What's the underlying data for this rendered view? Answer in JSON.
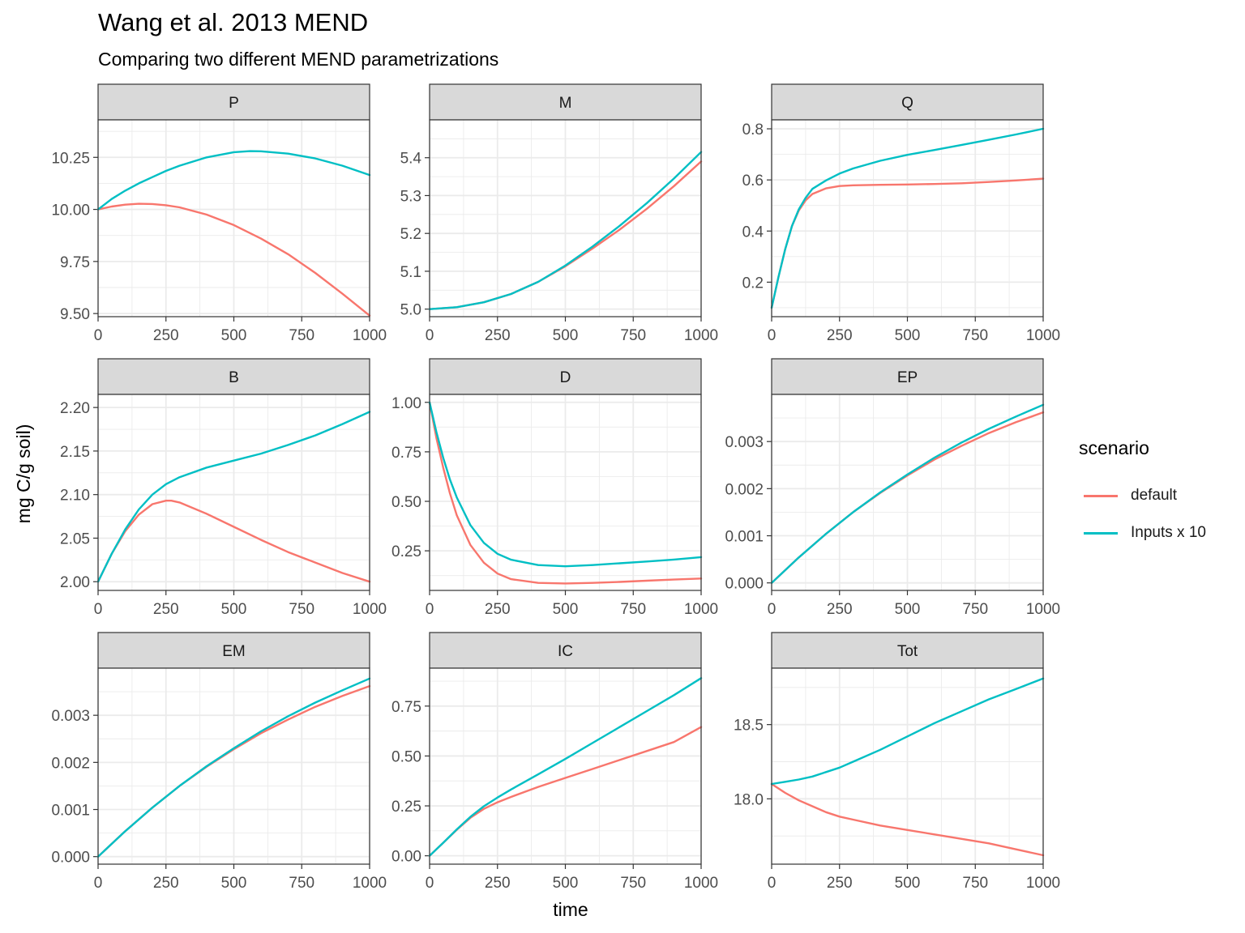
{
  "title": "Wang et al. 2013 MEND",
  "subtitle": "Comparing two different MEND parametrizations",
  "colors": {
    "default": "#F8766D",
    "inputs_x10": "#00BFC4",
    "strip_fill": "#D9D9D9",
    "grid": "#EBEBEB",
    "panel_border": "#333333"
  },
  "legend": {
    "title": "scenario",
    "items": [
      {
        "label": "default",
        "color": "#F8766D"
      },
      {
        "label": "Inputs x 10",
        "color": "#00BFC4"
      }
    ]
  },
  "chart_data": {
    "type": "line",
    "layout": "facet-wrap-3x3",
    "xlabel": "time",
    "ylabel": "mg C/g soil)",
    "legend_position": "right",
    "grid": true,
    "series_names": [
      "default",
      "Inputs x 10"
    ],
    "panels": [
      {
        "name": "P",
        "xlim": [
          0,
          1000
        ],
        "ylim": [
          9.485,
          10.43
        ],
        "xticks": [
          0,
          250,
          500,
          750,
          1000
        ],
        "xtick_labels": [
          "0",
          "250",
          "500",
          "750",
          "1000"
        ],
        "yticks": [
          9.5,
          9.75,
          10.0,
          10.25
        ],
        "ytick_labels": [
          "9.50",
          "9.75",
          "10.00",
          "10.25"
        ],
        "series": [
          {
            "name": "default",
            "x": [
              0,
              50,
              100,
              150,
              200,
              250,
              300,
              400,
              500,
              600,
              700,
              800,
              900,
              1000
            ],
            "y": [
              10.0,
              10.014,
              10.023,
              10.027,
              10.026,
              10.02,
              10.01,
              9.975,
              9.925,
              9.86,
              9.785,
              9.695,
              9.595,
              9.49
            ]
          },
          {
            "name": "Inputs x 10",
            "x": [
              0,
              50,
              100,
              150,
              200,
              250,
              300,
              400,
              500,
              560,
              600,
              700,
              800,
              900,
              1000
            ],
            "y": [
              10.0,
              10.05,
              10.09,
              10.125,
              10.155,
              10.185,
              10.21,
              10.25,
              10.275,
              10.28,
              10.279,
              10.268,
              10.245,
              10.21,
              10.165
            ]
          }
        ]
      },
      {
        "name": "M",
        "xlim": [
          0,
          1000
        ],
        "ylim": [
          4.98,
          5.5
        ],
        "xticks": [
          0,
          250,
          500,
          750,
          1000
        ],
        "xtick_labels": [
          "0",
          "250",
          "500",
          "750",
          "1000"
        ],
        "yticks": [
          5.0,
          5.1,
          5.2,
          5.3,
          5.4
        ],
        "ytick_labels": [
          "5.0",
          "5.1",
          "5.2",
          "5.3",
          "5.4"
        ],
        "series": [
          {
            "name": "default",
            "x": [
              0,
              100,
              200,
              300,
              400,
              500,
              600,
              700,
              800,
              900,
              1000
            ],
            "y": [
              5.0,
              5.005,
              5.018,
              5.04,
              5.072,
              5.113,
              5.16,
              5.21,
              5.265,
              5.325,
              5.39
            ]
          },
          {
            "name": "Inputs x 10",
            "x": [
              0,
              100,
              200,
              300,
              400,
              500,
              600,
              700,
              800,
              900,
              1000
            ],
            "y": [
              5.0,
              5.005,
              5.018,
              5.04,
              5.072,
              5.115,
              5.165,
              5.22,
              5.28,
              5.345,
              5.415
            ]
          }
        ]
      },
      {
        "name": "Q",
        "xlim": [
          0,
          1000
        ],
        "ylim": [
          0.065,
          0.835
        ],
        "xticks": [
          0,
          250,
          500,
          750,
          1000
        ],
        "xtick_labels": [
          "0",
          "250",
          "500",
          "750",
          "1000"
        ],
        "yticks": [
          0.2,
          0.4,
          0.6,
          0.8
        ],
        "ytick_labels": [
          "0.2",
          "0.4",
          "0.6",
          "0.8"
        ],
        "series": [
          {
            "name": "default",
            "x": [
              0,
              25,
              50,
              75,
              100,
              125,
              150,
              200,
              250,
              300,
              400,
              500,
              600,
              700,
              800,
              900,
              1000
            ],
            "y": [
              0.1,
              0.22,
              0.33,
              0.42,
              0.48,
              0.52,
              0.545,
              0.567,
              0.576,
              0.579,
              0.581,
              0.582,
              0.584,
              0.587,
              0.592,
              0.598,
              0.605
            ]
          },
          {
            "name": "Inputs x 10",
            "x": [
              0,
              25,
              50,
              75,
              100,
              125,
              150,
              200,
              250,
              300,
              400,
              500,
              600,
              700,
              800,
              900,
              1000
            ],
            "y": [
              0.1,
              0.22,
              0.33,
              0.42,
              0.485,
              0.53,
              0.565,
              0.598,
              0.625,
              0.645,
              0.675,
              0.698,
              0.717,
              0.737,
              0.757,
              0.778,
              0.8
            ]
          }
        ]
      },
      {
        "name": "B",
        "xlim": [
          0,
          1000
        ],
        "ylim": [
          1.99,
          2.215
        ],
        "xticks": [
          0,
          250,
          500,
          750,
          1000
        ],
        "xtick_labels": [
          "0",
          "250",
          "500",
          "750",
          "1000"
        ],
        "yticks": [
          2.0,
          2.05,
          2.1,
          2.15,
          2.2
        ],
        "ytick_labels": [
          "2.00",
          "2.05",
          "2.10",
          "2.15",
          "2.20"
        ],
        "series": [
          {
            "name": "default",
            "x": [
              0,
              50,
              100,
              150,
              200,
              250,
              270,
              300,
              400,
              500,
              600,
              700,
              800,
              900,
              1000
            ],
            "y": [
              2.0,
              2.032,
              2.058,
              2.077,
              2.089,
              2.093,
              2.093,
              2.091,
              2.078,
              2.063,
              2.048,
              2.034,
              2.022,
              2.01,
              2.0
            ]
          },
          {
            "name": "Inputs x 10",
            "x": [
              0,
              50,
              100,
              150,
              200,
              250,
              300,
              400,
              500,
              600,
              700,
              800,
              900,
              1000
            ],
            "y": [
              2.0,
              2.032,
              2.06,
              2.083,
              2.1,
              2.112,
              2.12,
              2.131,
              2.139,
              2.147,
              2.157,
              2.168,
              2.181,
              2.195
            ]
          }
        ]
      },
      {
        "name": "D",
        "xlim": [
          0,
          1000
        ],
        "ylim": [
          0.05,
          1.04
        ],
        "xticks": [
          0,
          250,
          500,
          750,
          1000
        ],
        "xtick_labels": [
          "0",
          "250",
          "500",
          "750",
          "1000"
        ],
        "yticks": [
          0.25,
          0.5,
          0.75,
          1.0
        ],
        "ytick_labels": [
          "0.25",
          "0.50",
          "0.75",
          "1.00"
        ],
        "series": [
          {
            "name": "default",
            "x": [
              0,
              25,
              50,
              75,
              100,
              150,
              200,
              250,
              300,
              400,
              500,
              600,
              700,
              800,
              900,
              1000
            ],
            "y": [
              1.0,
              0.82,
              0.67,
              0.54,
              0.43,
              0.28,
              0.19,
              0.135,
              0.107,
              0.088,
              0.085,
              0.088,
              0.093,
              0.099,
              0.105,
              0.11
            ]
          },
          {
            "name": "Inputs x 10",
            "x": [
              0,
              25,
              50,
              75,
              100,
              150,
              200,
              250,
              300,
              400,
              500,
              600,
              700,
              800,
              900,
              1000
            ],
            "y": [
              1.0,
              0.85,
              0.72,
              0.61,
              0.52,
              0.38,
              0.29,
              0.235,
              0.205,
              0.178,
              0.172,
              0.178,
              0.187,
              0.196,
              0.206,
              0.218
            ]
          }
        ]
      },
      {
        "name": "EP",
        "xlim": [
          0,
          1000
        ],
        "ylim": [
          -0.00016,
          0.004
        ],
        "xticks": [
          0,
          250,
          500,
          750,
          1000
        ],
        "xtick_labels": [
          "0",
          "250",
          "500",
          "750",
          "1000"
        ],
        "yticks": [
          0.0,
          0.001,
          0.002,
          0.003
        ],
        "ytick_labels": [
          "0.000",
          "0.001",
          "0.002",
          "0.003"
        ],
        "series": [
          {
            "name": "default",
            "x": [
              0,
              100,
              200,
              300,
              400,
              500,
              600,
              700,
              800,
              900,
              1000
            ],
            "y": [
              0.0,
              0.00054,
              0.00104,
              0.0015,
              0.00191,
              0.00228,
              0.00262,
              0.00291,
              0.00318,
              0.00341,
              0.00362
            ]
          },
          {
            "name": "Inputs x 10",
            "x": [
              0,
              100,
              200,
              300,
              400,
              500,
              600,
              700,
              800,
              900,
              1000
            ],
            "y": [
              0.0,
              0.00054,
              0.00104,
              0.0015,
              0.00192,
              0.0023,
              0.00266,
              0.00298,
              0.00327,
              0.00353,
              0.00378
            ]
          }
        ]
      },
      {
        "name": "EM",
        "xlim": [
          0,
          1000
        ],
        "ylim": [
          -0.00016,
          0.004
        ],
        "xticks": [
          0,
          250,
          500,
          750,
          1000
        ],
        "xtick_labels": [
          "0",
          "250",
          "500",
          "750",
          "1000"
        ],
        "yticks": [
          0.0,
          0.001,
          0.002,
          0.003
        ],
        "ytick_labels": [
          "0.000",
          "0.001",
          "0.002",
          "0.003"
        ],
        "series": [
          {
            "name": "default",
            "x": [
              0,
              100,
              200,
              300,
              400,
              500,
              600,
              700,
              800,
              900,
              1000
            ],
            "y": [
              0.0,
              0.00054,
              0.00104,
              0.0015,
              0.00191,
              0.00228,
              0.00262,
              0.00291,
              0.00318,
              0.00341,
              0.00362
            ]
          },
          {
            "name": "Inputs x 10",
            "x": [
              0,
              100,
              200,
              300,
              400,
              500,
              600,
              700,
              800,
              900,
              1000
            ],
            "y": [
              0.0,
              0.00054,
              0.00104,
              0.0015,
              0.00192,
              0.0023,
              0.00266,
              0.00298,
              0.00327,
              0.00353,
              0.00378
            ]
          }
        ]
      },
      {
        "name": "IC",
        "xlim": [
          0,
          1000
        ],
        "ylim": [
          -0.042,
          0.94
        ],
        "xticks": [
          0,
          250,
          500,
          750,
          1000
        ],
        "xtick_labels": [
          "0",
          "250",
          "500",
          "750",
          "1000"
        ],
        "yticks": [
          0.0,
          0.25,
          0.5,
          0.75
        ],
        "ytick_labels": [
          "0.00",
          "0.25",
          "0.50",
          "0.75"
        ],
        "series": [
          {
            "name": "default",
            "x": [
              0,
              50,
              100,
              150,
              200,
              250,
              300,
              400,
              500,
              600,
              700,
              800,
              900,
              1000
            ],
            "y": [
              0.0,
              0.065,
              0.13,
              0.19,
              0.235,
              0.268,
              0.295,
              0.345,
              0.39,
              0.435,
              0.48,
              0.525,
              0.57,
              0.645
            ]
          },
          {
            "name": "Inputs x 10",
            "x": [
              0,
              50,
              100,
              150,
              200,
              250,
              300,
              400,
              500,
              600,
              700,
              800,
              900,
              1000
            ],
            "y": [
              0.0,
              0.065,
              0.132,
              0.195,
              0.248,
              0.292,
              0.332,
              0.408,
              0.485,
              0.565,
              0.645,
              0.725,
              0.805,
              0.89
            ]
          }
        ]
      },
      {
        "name": "Tot",
        "xlim": [
          0,
          1000
        ],
        "ylim": [
          17.56,
          18.88
        ],
        "xticks": [
          0,
          250,
          500,
          750,
          1000
        ],
        "xtick_labels": [
          "0",
          "250",
          "500",
          "750",
          "1000"
        ],
        "yticks": [
          18.0,
          18.5
        ],
        "ytick_labels": [
          "18.0",
          "18.5"
        ],
        "series": [
          {
            "name": "default",
            "x": [
              0,
              50,
              100,
              150,
              200,
              250,
              300,
              400,
              500,
              600,
              700,
              800,
              900,
              1000
            ],
            "y": [
              18.1,
              18.04,
              17.99,
              17.95,
              17.91,
              17.88,
              17.86,
              17.82,
              17.79,
              17.76,
              17.73,
              17.7,
              17.66,
              17.62
            ]
          },
          {
            "name": "Inputs x 10",
            "x": [
              0,
              50,
              100,
              150,
              200,
              250,
              300,
              400,
              500,
              600,
              700,
              800,
              900,
              1000
            ],
            "y": [
              18.1,
              18.115,
              18.13,
              18.15,
              18.18,
              18.21,
              18.25,
              18.33,
              18.42,
              18.51,
              18.59,
              18.67,
              18.74,
              18.81
            ]
          }
        ]
      }
    ]
  }
}
